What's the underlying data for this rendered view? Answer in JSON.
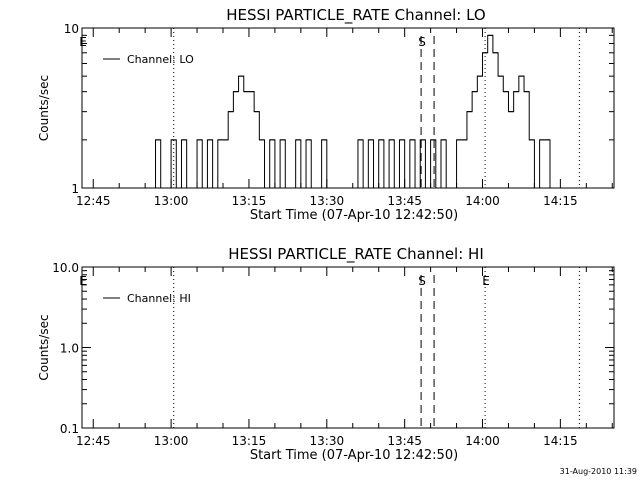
{
  "footer_timestamp": "31-Aug-2010 11:39",
  "chart_data": [
    {
      "type": "line",
      "title": "HESSI PARTICLE_RATE Channel: LO",
      "xlabel": "Start Time (07-Apr-10 12:42:50)",
      "ylabel": "Counts/sec",
      "xlim": [
        "12:42:50",
        "14:25:20"
      ],
      "ylim": [
        1,
        10
      ],
      "yscale": "log",
      "xticks": [
        "12:45",
        "13:00",
        "13:15",
        "13:30",
        "13:45",
        "14:00",
        "14:15"
      ],
      "yticks": [
        {
          "value": 1,
          "label": "1"
        },
        {
          "value": 10,
          "label": "10"
        }
      ],
      "legend": {
        "placement": "top-left",
        "entries": [
          "Channel: LO"
        ]
      },
      "markers": [
        {
          "label": "E",
          "time": "12:42:50",
          "style": "none"
        },
        {
          "label": "",
          "time": "13:00:30",
          "style": "dotted"
        },
        {
          "label": "S",
          "time": "13:48:10",
          "style": "dashed"
        },
        {
          "label": "",
          "time": "13:50:40",
          "style": "dashed"
        },
        {
          "label": "",
          "time": "14:00:30",
          "style": "dotted"
        },
        {
          "label": "",
          "time": "14:18:40",
          "style": "dotted"
        }
      ],
      "series": [
        {
          "name": "Channel: LO",
          "x": [
            "12:56",
            "12:57",
            "12:58",
            "12:59",
            "13:00",
            "13:01",
            "13:02",
            "13:03",
            "13:04",
            "13:05",
            "13:06",
            "13:07",
            "13:08",
            "13:09",
            "13:10",
            "13:11",
            "13:12",
            "13:13",
            "13:14",
            "13:15",
            "13:16",
            "13:17",
            "13:18",
            "13:19",
            "13:20",
            "13:21",
            "13:22",
            "13:23",
            "13:24",
            "13:25",
            "13:26",
            "13:27",
            "13:28",
            "13:29",
            "13:30",
            "13:31",
            "13:32",
            "13:33",
            "13:34",
            "13:35",
            "13:36",
            "13:37",
            "13:38",
            "13:39",
            "13:40",
            "13:41",
            "13:42",
            "13:43",
            "13:44",
            "13:45",
            "13:46",
            "13:47",
            "13:48",
            "13:49",
            "13:50",
            "13:51",
            "13:52",
            "13:53",
            "13:54",
            "13:55",
            "13:56",
            "13:57",
            "13:58",
            "13:59",
            "14:00",
            "14:01",
            "14:02",
            "14:03",
            "14:04",
            "14:05",
            "14:06",
            "14:07",
            "14:08",
            "14:09",
            "14:10",
            "14:11",
            "14:12",
            "14:13"
          ],
          "values": [
            1,
            2,
            1,
            1,
            2,
            1,
            2,
            1,
            1,
            2,
            1,
            2,
            1,
            2,
            2,
            3,
            4,
            5,
            4,
            4,
            3,
            2,
            1,
            2,
            1,
            2,
            1,
            1,
            2,
            1,
            2,
            1,
            1,
            2,
            1,
            1,
            1,
            1,
            1,
            1,
            2,
            1,
            2,
            1,
            2,
            1,
            2,
            1,
            2,
            1,
            2,
            1,
            2,
            1,
            2,
            1,
            2,
            1,
            1,
            2,
            2,
            3,
            4,
            5,
            7,
            9,
            7,
            5,
            4,
            3,
            4,
            5,
            4,
            2,
            1,
            2,
            2,
            1
          ]
        }
      ]
    },
    {
      "type": "line",
      "title": "HESSI PARTICLE_RATE Channel: HI",
      "xlabel": "Start Time (07-Apr-10 12:42:50)",
      "ylabel": "Counts/sec",
      "xlim": [
        "12:42:50",
        "14:25:20"
      ],
      "ylim": [
        0.1,
        10.0
      ],
      "yscale": "log",
      "xticks": [
        "12:45",
        "13:00",
        "13:15",
        "13:30",
        "13:45",
        "14:00",
        "14:15"
      ],
      "yticks": [
        {
          "value": 0.1,
          "label": "0.1"
        },
        {
          "value": 1.0,
          "label": "1.0"
        },
        {
          "value": 10.0,
          "label": "10.0"
        }
      ],
      "legend": {
        "placement": "top-left",
        "entries": [
          "Channel: HI"
        ]
      },
      "markers": [
        {
          "label": "E",
          "time": "12:42:50",
          "style": "none"
        },
        {
          "label": "",
          "time": "13:00:30",
          "style": "dotted"
        },
        {
          "label": "S",
          "time": "13:48:10",
          "style": "dashed"
        },
        {
          "label": "",
          "time": "13:50:40",
          "style": "dashed"
        },
        {
          "label": "E",
          "time": "14:00:30",
          "style": "dotted"
        },
        {
          "label": "",
          "time": "14:18:40",
          "style": "dotted"
        }
      ],
      "series": [
        {
          "name": "Channel: HI",
          "x": [],
          "values": []
        }
      ]
    }
  ]
}
